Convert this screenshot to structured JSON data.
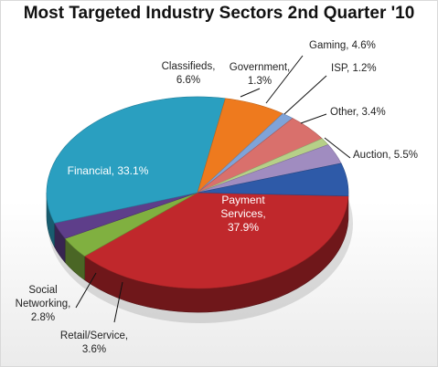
{
  "chart_data": {
    "type": "pie",
    "title": "Most Targeted Industry Sectors 2nd Quarter '10",
    "slices": [
      {
        "label": "Payment Services",
        "label_lines": [
          "Payment",
          "Services,",
          "37.9%"
        ],
        "value": 37.9,
        "color": "#c0282c"
      },
      {
        "label": "Retail/Service",
        "label_lines": [
          "Retail/Service,",
          "3.6%"
        ],
        "value": 3.6,
        "color": "#80b040"
      },
      {
        "label": "Social Networking",
        "label_lines": [
          "Social",
          "Networking,",
          "2.8%"
        ],
        "value": 2.8,
        "color": "#5e3e8a"
      },
      {
        "label": "Financial",
        "label_lines": [
          "Financial, 33.1%"
        ],
        "value": 33.1,
        "color": "#2a9fc0"
      },
      {
        "label": "Classifieds",
        "label_lines": [
          "Classifieds,",
          "6.6%"
        ],
        "value": 6.6,
        "color": "#ee7a1e"
      },
      {
        "label": "Government",
        "label_lines": [
          "Government,",
          "1.3%"
        ],
        "value": 1.3,
        "color": "#7fa3d8"
      },
      {
        "label": "Gaming",
        "label_lines": [
          "Gaming, 4.6%"
        ],
        "value": 4.6,
        "color": "#d9706c"
      },
      {
        "label": "ISP",
        "label_lines": [
          "ISP, 1.2%"
        ],
        "value": 1.2,
        "color": "#b6d088"
      },
      {
        "label": "Other",
        "label_lines": [
          "Other, 3.4%"
        ],
        "value": 3.4,
        "color": "#a08cc0"
      },
      {
        "label": "Auction",
        "label_lines": [
          "Auction, 5.5%"
        ],
        "value": 5.5,
        "color": "#2e5aa8"
      }
    ]
  }
}
